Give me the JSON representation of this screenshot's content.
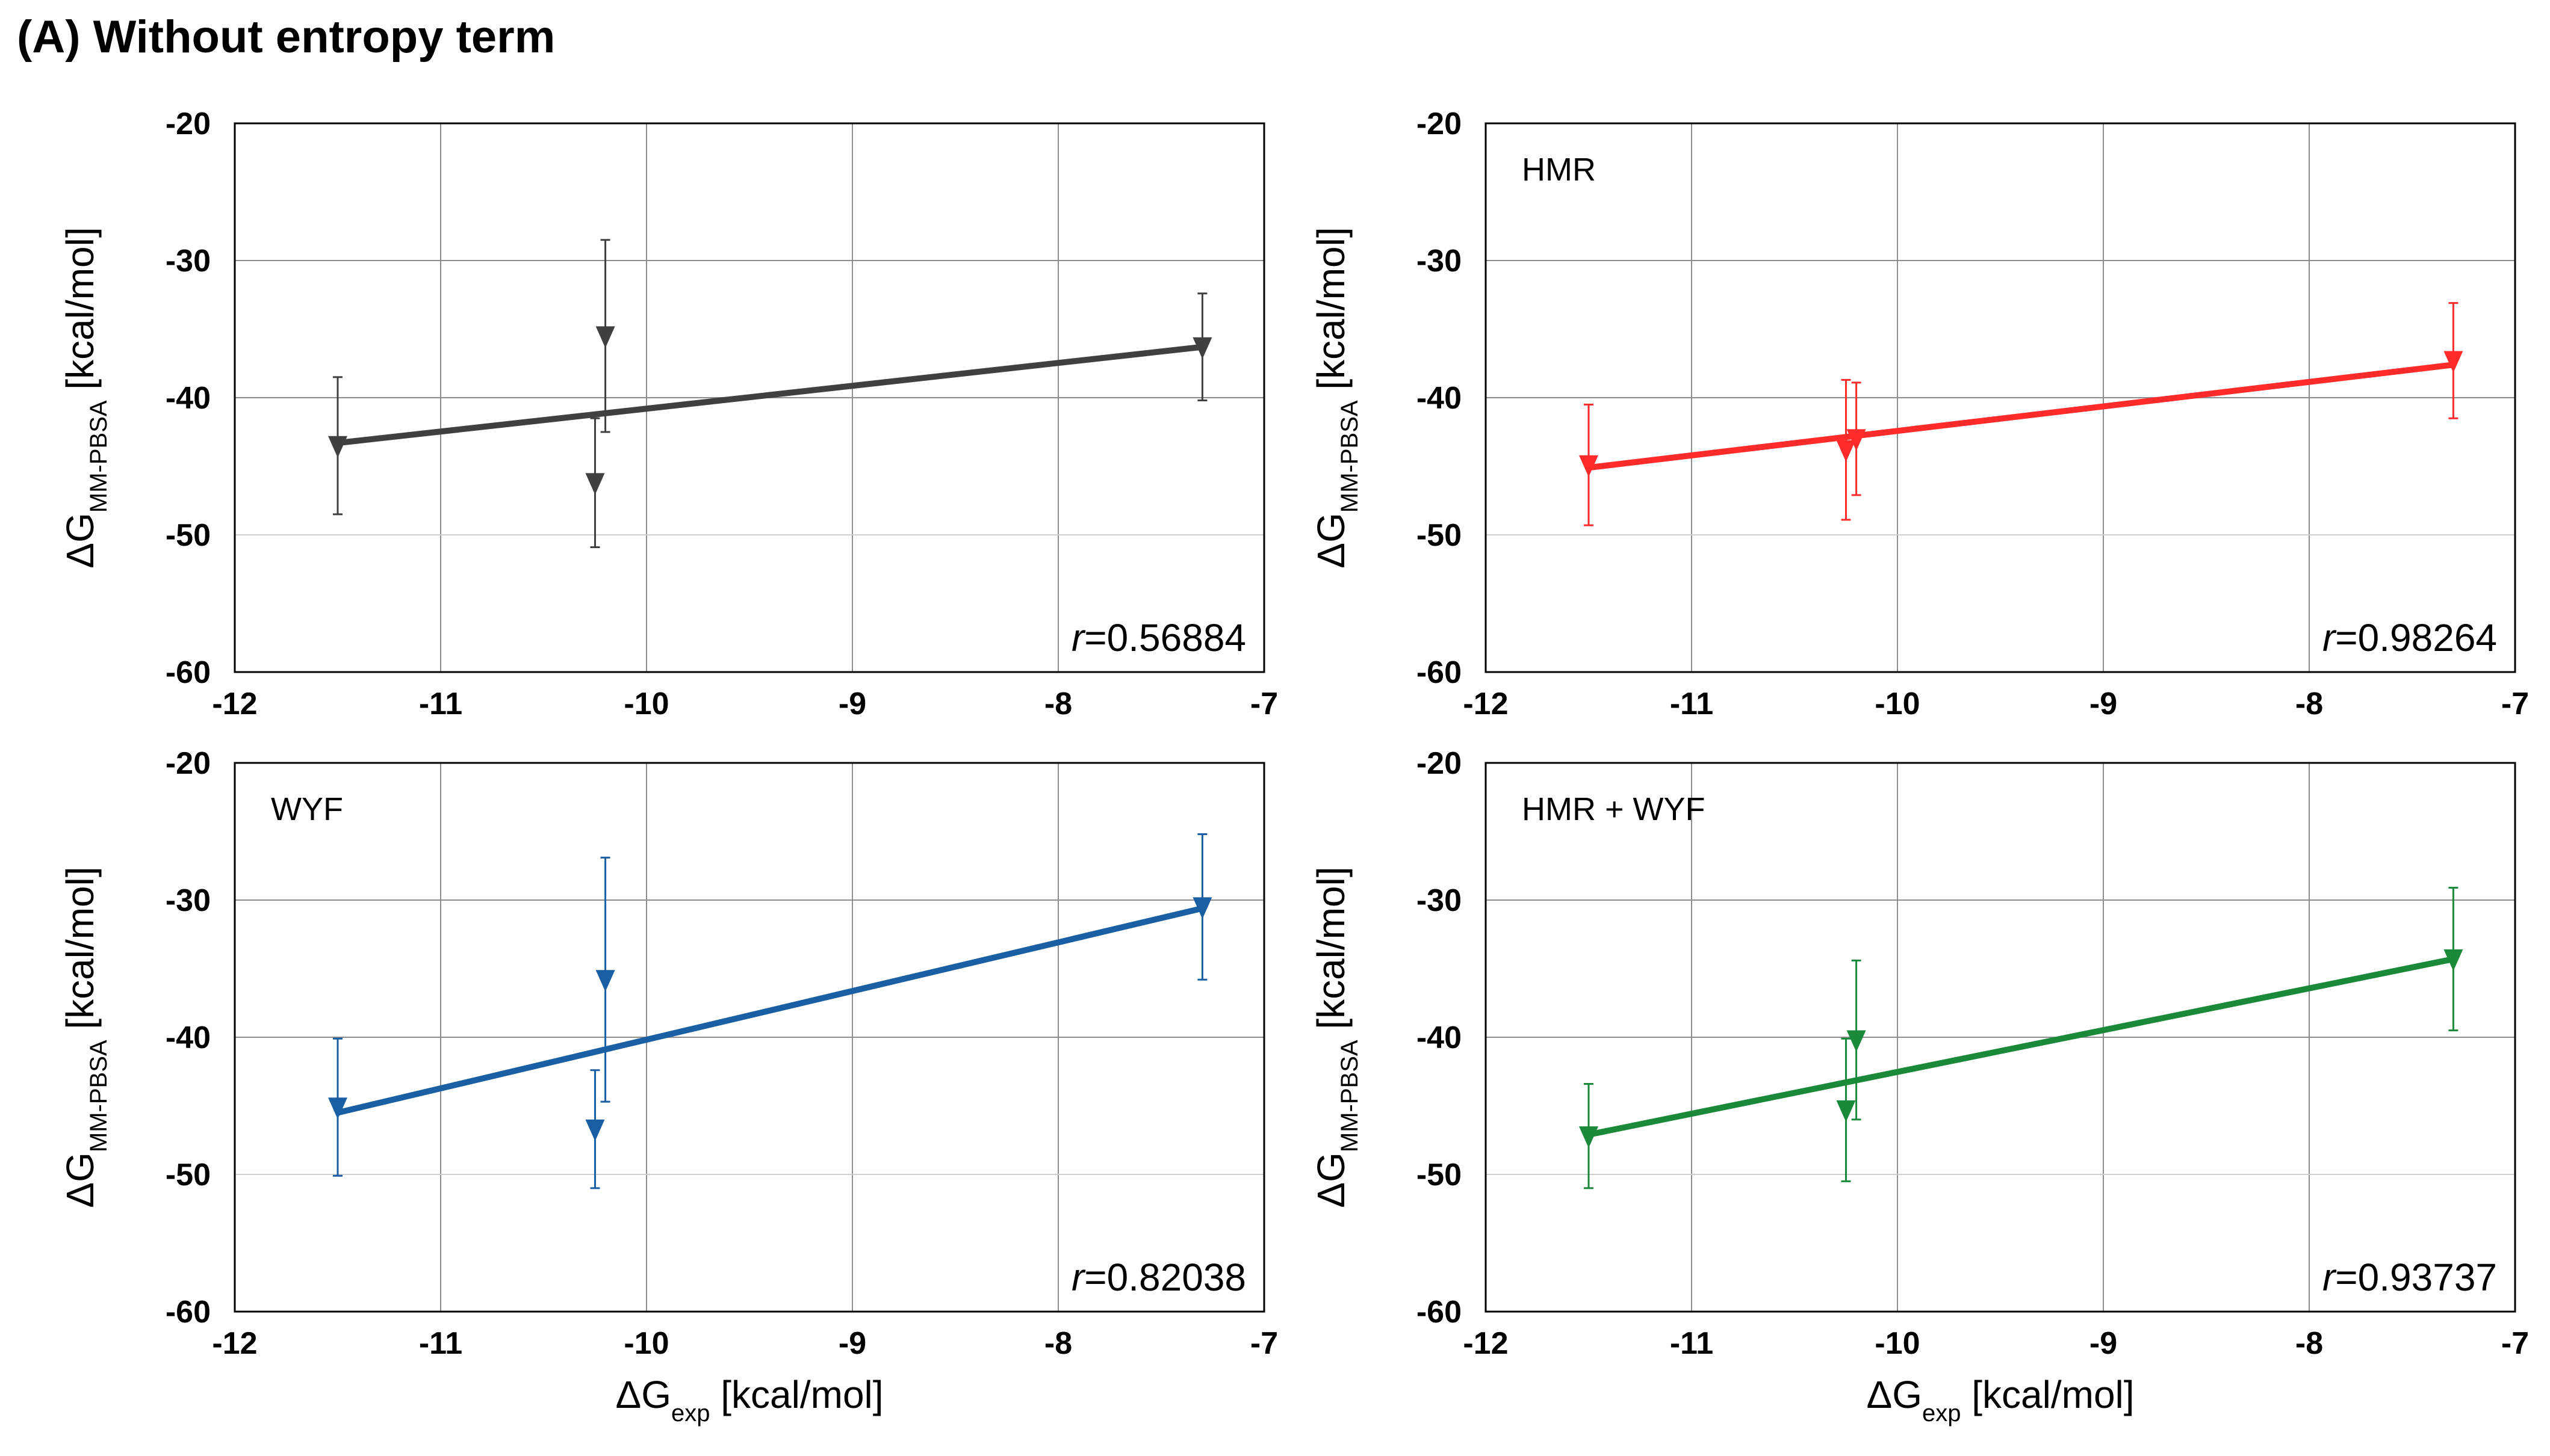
{
  "figure_title": "(A) Without entropy term",
  "chart_data": [
    {
      "type": "scatter",
      "series_label": "",
      "color": "#404040",
      "x": [
        -11.5,
        -10.25,
        -10.2,
        -7.3
      ],
      "y": [
        -43.5,
        -46.2,
        -35.5,
        -36.3
      ],
      "y_err": [
        5.0,
        4.7,
        7.0,
        3.9
      ],
      "fit_line": [
        [
          -11.5,
          -43.3
        ],
        [
          -7.3,
          -36.3
        ]
      ],
      "r_prefix": "r",
      "r_value": "=0.56884",
      "xlim": [
        -12,
        -7
      ],
      "ylim": [
        -60,
        -20
      ],
      "x_ticks": [
        "-12",
        "-11",
        "-10",
        "-9",
        "-8",
        "-7"
      ],
      "y_ticks": [
        "-20",
        "-30",
        "-40",
        "-50",
        "-60"
      ],
      "xlabel_main": "ΔG",
      "xlabel_sub": "exp",
      "xlabel_unit": " [kcal/mol]",
      "ylabel_main": "ΔG",
      "ylabel_sub": "MM-PBSA",
      "ylabel_unit": " [kcal/mol]"
    },
    {
      "type": "scatter",
      "series_label": "HMR",
      "color": "#ff2a2a",
      "x": [
        -11.5,
        -10.25,
        -10.2,
        -7.3
      ],
      "y": [
        -44.9,
        -43.8,
        -43.0,
        -37.3
      ],
      "y_err": [
        4.4,
        5.1,
        4.1,
        4.2
      ],
      "fit_line": [
        [
          -11.5,
          -45.1
        ],
        [
          -7.3,
          -37.6
        ]
      ],
      "r_prefix": "r",
      "r_value": "=0.98264",
      "xlim": [
        -12,
        -7
      ],
      "ylim": [
        -60,
        -20
      ],
      "x_ticks": [
        "-12",
        "-11",
        "-10",
        "-9",
        "-8",
        "-7"
      ],
      "y_ticks": [
        "-20",
        "-30",
        "-40",
        "-50",
        "-60"
      ],
      "xlabel_main": "ΔG",
      "xlabel_sub": "exp",
      "xlabel_unit": " [kcal/mol]",
      "ylabel_main": "ΔG",
      "ylabel_sub": "MM-PBSA",
      "ylabel_unit": " [kcal/mol]"
    },
    {
      "type": "scatter",
      "series_label": "WYF",
      "color": "#1a5fa3",
      "x": [
        -11.5,
        -10.25,
        -10.2,
        -7.3
      ],
      "y": [
        -45.1,
        -46.7,
        -35.8,
        -30.5
      ],
      "y_err": [
        5.0,
        4.3,
        8.9,
        5.3
      ],
      "fit_line": [
        [
          -11.5,
          -45.5
        ],
        [
          -7.3,
          -30.6
        ]
      ],
      "r_prefix": "r",
      "r_value": "=0.82038",
      "xlim": [
        -12,
        -7
      ],
      "ylim": [
        -60,
        -20
      ],
      "x_ticks": [
        "-12",
        "-11",
        "-10",
        "-9",
        "-8",
        "-7"
      ],
      "y_ticks": [
        "-20",
        "-30",
        "-40",
        "-50",
        "-60"
      ],
      "xlabel_main": "ΔG",
      "xlabel_sub": "exp",
      "xlabel_unit": " [kcal/mol]",
      "ylabel_main": "ΔG",
      "ylabel_sub": "MM-PBSA",
      "ylabel_unit": " [kcal/mol]"
    },
    {
      "type": "scatter",
      "series_label": "HMR + WYF",
      "color": "#1a8a3a",
      "x": [
        -11.5,
        -10.25,
        -10.2,
        -7.3
      ],
      "y": [
        -47.2,
        -45.3,
        -40.2,
        -34.3
      ],
      "y_err": [
        3.8,
        5.2,
        5.8,
        5.2
      ],
      "fit_line": [
        [
          -11.5,
          -47.1
        ],
        [
          -7.3,
          -34.3
        ]
      ],
      "r_prefix": "r",
      "r_value": "=0.93737",
      "xlim": [
        -12,
        -7
      ],
      "ylim": [
        -60,
        -20
      ],
      "x_ticks": [
        "-12",
        "-11",
        "-10",
        "-9",
        "-8",
        "-7"
      ],
      "y_ticks": [
        "-20",
        "-30",
        "-40",
        "-50",
        "-60"
      ],
      "xlabel_main": "ΔG",
      "xlabel_sub": "exp",
      "xlabel_unit": " [kcal/mol]",
      "ylabel_main": "ΔG",
      "ylabel_sub": "MM-PBSA",
      "ylabel_unit": " [kcal/mol]"
    }
  ]
}
